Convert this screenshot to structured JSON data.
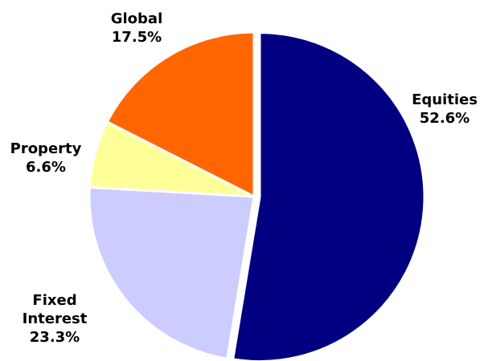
{
  "chart_data": {
    "type": "pie",
    "title": "",
    "slices": [
      {
        "name": "Equities",
        "value": 52.6,
        "label": "52.6%",
        "color": "#000080"
      },
      {
        "name": "Fixed Interest",
        "value": 23.3,
        "label": "23.3%",
        "color": "#ccccff"
      },
      {
        "name": "Property",
        "value": 6.6,
        "label": "6.6%",
        "color": "#ffff99"
      },
      {
        "name": "Global",
        "value": 17.5,
        "label": "17.5%",
        "color": "#ff6600"
      }
    ],
    "start_angle_deg": 0,
    "direction": "clockwise",
    "exploded": "Equities",
    "legend": "none"
  }
}
